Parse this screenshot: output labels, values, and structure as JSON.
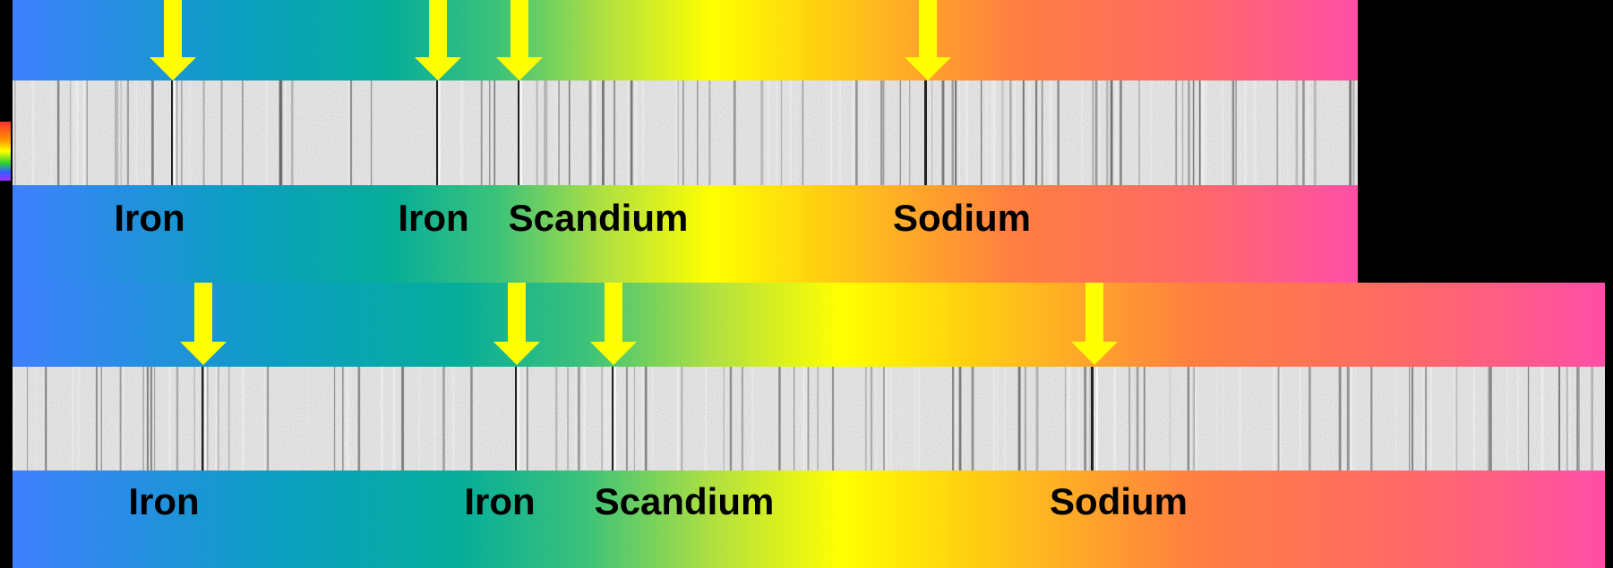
{
  "panels": [
    {
      "labels": [
        "Iron",
        "Iron",
        "Scandium",
        "Sodium"
      ]
    },
    {
      "labels": [
        "Iron",
        "Iron",
        "Scandium",
        "Sodium"
      ]
    }
  ]
}
